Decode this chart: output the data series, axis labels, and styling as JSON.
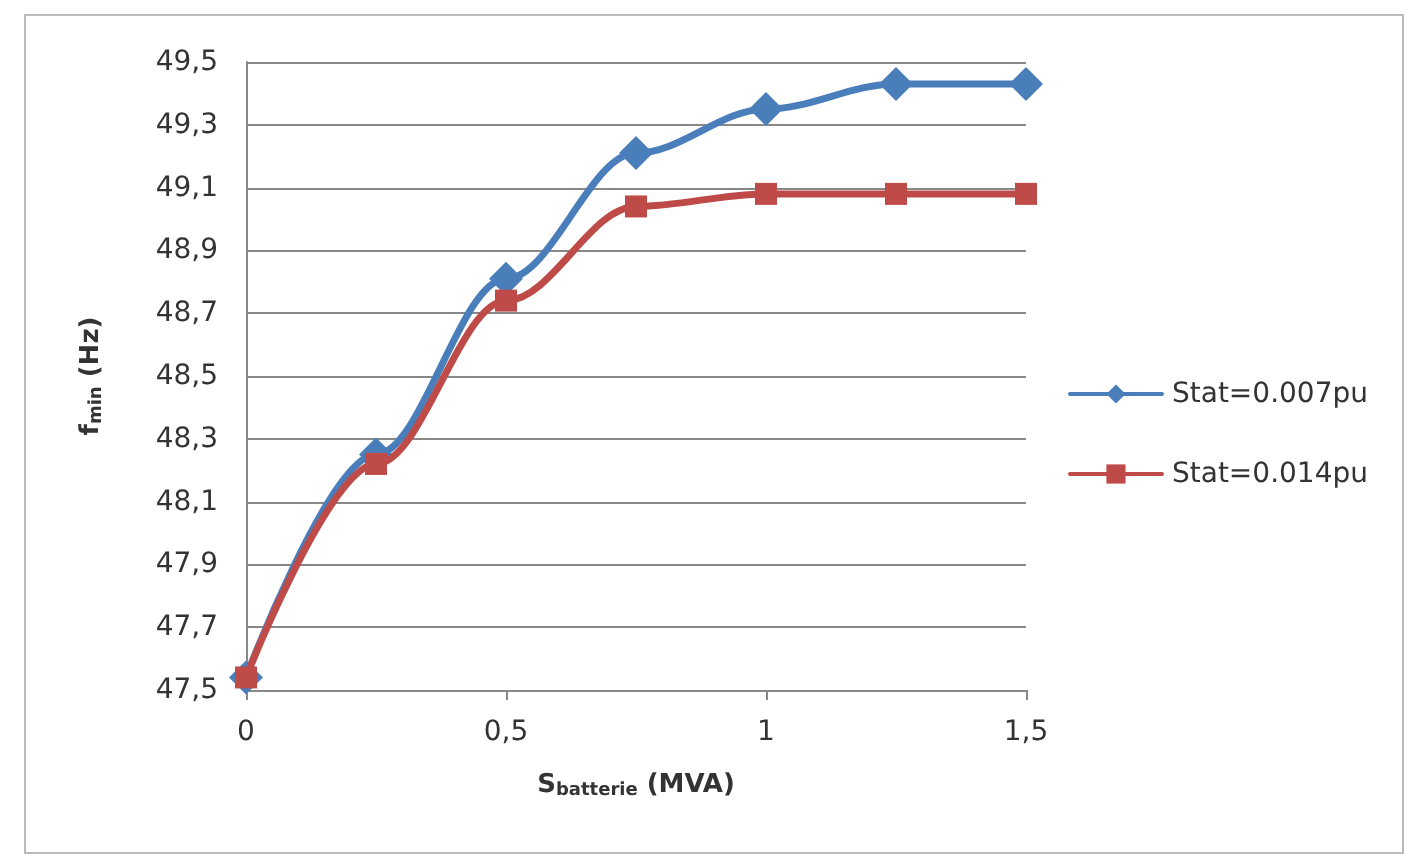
{
  "chart_data": {
    "type": "line",
    "xlabel": "S$_{batterie}$ (MVA)",
    "ylabel": "f$_{min}$ (Hz)",
    "x": [
      0,
      0.25,
      0.5,
      0.75,
      1,
      1.25,
      1.5
    ],
    "series": [
      {
        "name": "Stat=0.007pu",
        "color": "#4a7ebb",
        "marker": "diamond",
        "values": [
          47.54,
          48.25,
          48.81,
          49.21,
          49.35,
          49.43,
          49.43
        ]
      },
      {
        "name": "Stat=0.014pu",
        "color": "#be4b48",
        "marker": "square",
        "values": [
          47.54,
          48.22,
          48.74,
          49.04,
          49.08,
          49.08,
          49.08
        ]
      }
    ],
    "xlim": [
      0,
      1.5
    ],
    "xticks": [
      0,
      {
        "value": 0.5,
        "label": "0,5"
      },
      1,
      {
        "value": 1.5,
        "label": "1,5"
      }
    ],
    "ylim": [
      47.5,
      49.5
    ],
    "yticks": [
      {
        "value": 47.5,
        "label": "47,5"
      },
      {
        "value": 47.7,
        "label": "47,7"
      },
      {
        "value": 47.9,
        "label": "47,9"
      },
      {
        "value": 48.1,
        "label": "48,1"
      },
      {
        "value": 48.3,
        "label": "48,3"
      },
      {
        "value": 48.5,
        "label": "48,5"
      },
      {
        "value": 48.7,
        "label": "48,7"
      },
      {
        "value": 48.9,
        "label": "48,9"
      },
      {
        "value": 49.1,
        "label": "49,1"
      },
      {
        "value": 49.3,
        "label": "49,3"
      },
      {
        "value": 49.5,
        "label": "49,5"
      }
    ],
    "grid": "y",
    "legend": "right"
  }
}
